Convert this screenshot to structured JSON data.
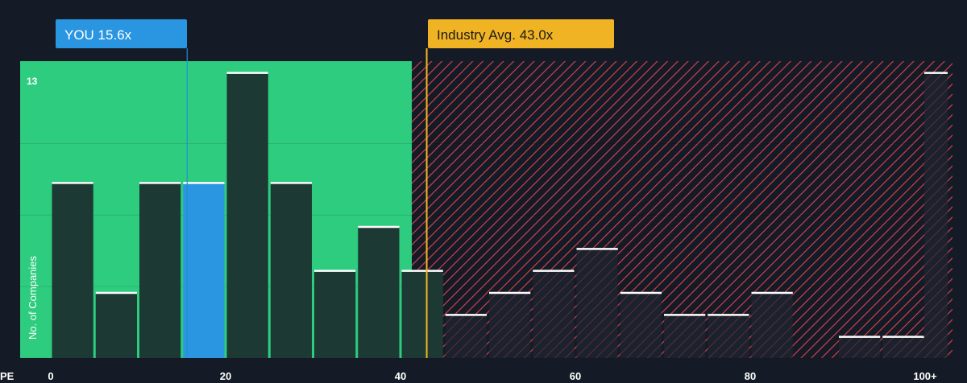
{
  "colors": {
    "background": "#151b26",
    "below_zone": "#2ecc7f",
    "above_zone_hatch": "#d9444f",
    "bar_dark": "#1c3a33",
    "bar_highlight": "#2a95e0",
    "bar_top_line": "#ffffff",
    "you_callout": "#2a95e0",
    "industry_callout": "#f0b323",
    "industry_line": "#f0b323",
    "you_line": "#1f8fd6"
  },
  "chart_data": {
    "type": "bar",
    "title": "",
    "xlabel": "PE",
    "ylabel": "No. of Companies",
    "y_max_label": "13",
    "xlim": [
      0,
      101
    ],
    "ylim": [
      0,
      13.5
    ],
    "x_ticks": [
      {
        "value": 0,
        "label": "0"
      },
      {
        "value": 20,
        "label": "20"
      },
      {
        "value": 40,
        "label": "40"
      },
      {
        "value": 60,
        "label": "60"
      },
      {
        "value": 80,
        "label": "80"
      },
      {
        "value": 100,
        "label": "100+"
      }
    ],
    "bins": [
      {
        "start": 0,
        "end": 5,
        "count": 8
      },
      {
        "start": 5,
        "end": 10,
        "count": 3
      },
      {
        "start": 10,
        "end": 15,
        "count": 8
      },
      {
        "start": 15,
        "end": 20,
        "count": 8,
        "highlight": true
      },
      {
        "start": 20,
        "end": 25,
        "count": 13
      },
      {
        "start": 25,
        "end": 30,
        "count": 8
      },
      {
        "start": 30,
        "end": 35,
        "count": 4
      },
      {
        "start": 35,
        "end": 40,
        "count": 6
      },
      {
        "start": 40,
        "end": 45,
        "count": 4
      },
      {
        "start": 45,
        "end": 50,
        "count": 2
      },
      {
        "start": 50,
        "end": 55,
        "count": 3
      },
      {
        "start": 55,
        "end": 60,
        "count": 4
      },
      {
        "start": 60,
        "end": 65,
        "count": 5
      },
      {
        "start": 65,
        "end": 70,
        "count": 3
      },
      {
        "start": 70,
        "end": 75,
        "count": 2
      },
      {
        "start": 75,
        "end": 80,
        "count": 2
      },
      {
        "start": 80,
        "end": 85,
        "count": 3
      },
      {
        "start": 85,
        "end": 90,
        "count": 0
      },
      {
        "start": 90,
        "end": 95,
        "count": 1
      },
      {
        "start": 95,
        "end": 100,
        "count": 1
      },
      {
        "start": 100,
        "end": 101,
        "count": 13
      }
    ],
    "zone_boundary": 41.3,
    "you_value": 15.6,
    "you_label": "YOU 15.6x",
    "industry_value": 43.0,
    "industry_label": "Industry Avg. 43.0x"
  }
}
